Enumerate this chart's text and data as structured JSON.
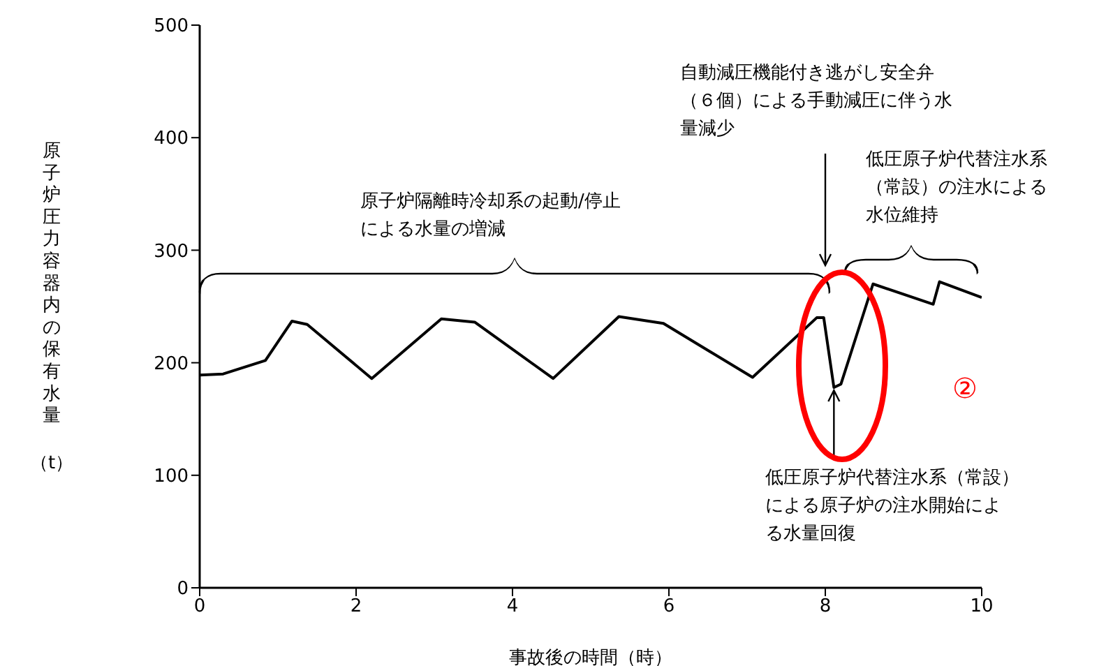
{
  "chart_data": {
    "type": "line",
    "xlabel": "事故後の時間（時）",
    "ylabel": "原子炉圧力容器内の保有水量（t）",
    "x": [
      0,
      0.3,
      0.84,
      1.18,
      1.375,
      2.2,
      3.09,
      3.52,
      4.52,
      5.36,
      5.93,
      7.07,
      7.89,
      7.98,
      8.11,
      8.2,
      8.61,
      9.38,
      9.46,
      10
    ],
    "series": [
      {
        "color": "#000000",
        "values": [
          189,
          190,
          202,
          237,
          234,
          186,
          239,
          236,
          186,
          241,
          235,
          187,
          240,
          240,
          178,
          181,
          270,
          252,
          272,
          258
        ]
      }
    ],
    "xlim": [
      0,
      10
    ],
    "xticks": [
      0,
      2,
      4,
      6,
      8,
      10
    ],
    "ylim": [
      0,
      500
    ],
    "yticks": [
      0,
      100,
      200,
      300,
      400,
      500
    ],
    "grid": false,
    "legend": false,
    "marker": "none",
    "line_style": "solid",
    "annotations": [
      "原子炉隔離時冷却系の起動/停止による水量の増減",
      "自動減圧機能付き逃がし安全弁（６個）による手動減圧に伴う水量減少",
      "低圧原子炉代替注水系（常設）の注水による水位維持",
      {
        "text": "低圧原子炉代替注水系（常設）による原子炉の注水開始による水量回復",
        "x": 8.11,
        "y": 178
      },
      "②"
    ]
  }
}
